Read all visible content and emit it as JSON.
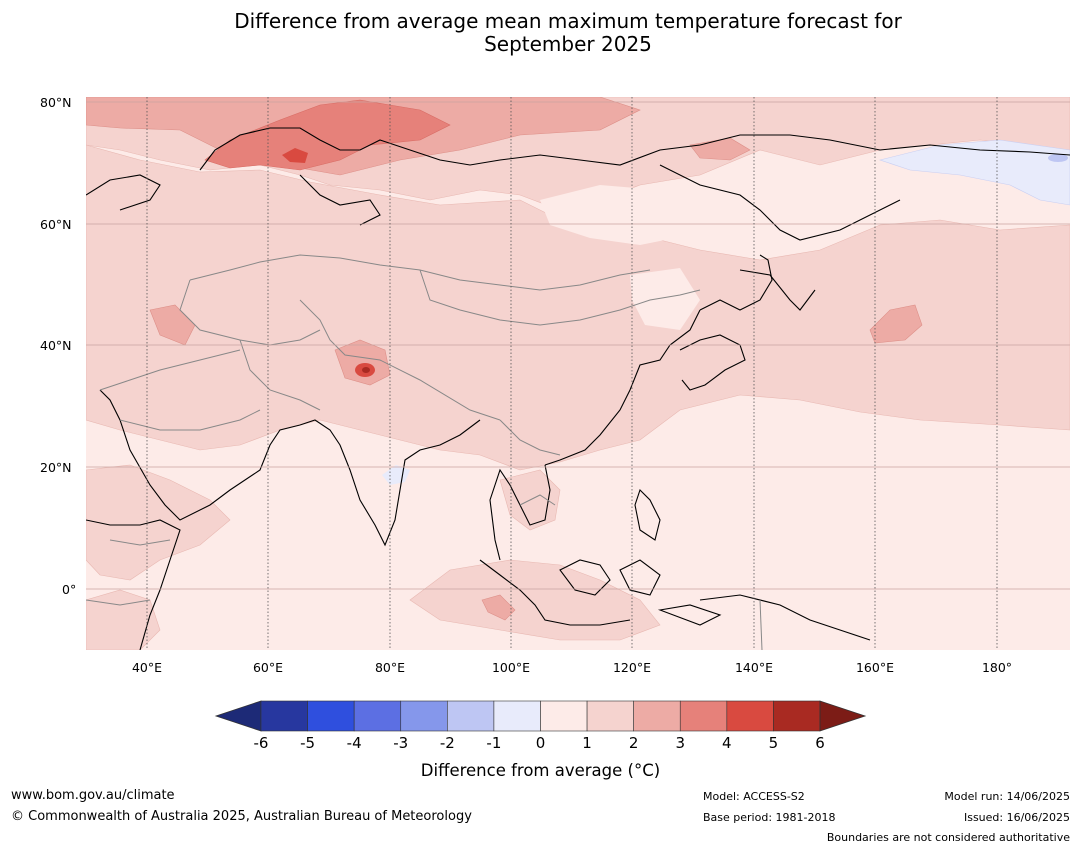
{
  "title": {
    "line1": "Difference from average mean maximum temperature forecast for",
    "line2": "September 2025"
  },
  "map": {
    "lat_labels": [
      "80°N",
      "60°N",
      "40°N",
      "20°N",
      "0°"
    ],
    "lon_labels": [
      "40°E",
      "60°E",
      "80°E",
      "100°E",
      "120°E",
      "140°E",
      "160°E",
      "180°"
    ],
    "extent": {
      "lon_min": 30,
      "lon_max": 192,
      "lat_min": -10,
      "lat_max": 81
    }
  },
  "colorbar": {
    "ticks": [
      "-6",
      "-5",
      "-4",
      "-3",
      "-2",
      "-1",
      "0",
      "1",
      "2",
      "3",
      "4",
      "5",
      "6"
    ],
    "label": "Difference from average (°C)",
    "colors": [
      "#27379f",
      "#2f4fde",
      "#5c6fe3",
      "#8597eb",
      "#bec6f3",
      "#e8ebfb",
      "#fdebe8",
      "#f5d3cf",
      "#edaba5",
      "#e6817a",
      "#d94a40",
      "#a92a22"
    ],
    "under_color": "#1d2a77",
    "over_color": "#7c1c16"
  },
  "footer": {
    "website": "www.bom.gov.au/climate",
    "copyright": "© Commonwealth of Australia 2025, Australian Bureau of Meteorology",
    "model": "Model: ACCESS-S2",
    "base_period": "Base period: 1981-2018",
    "model_run": "Model run: 14/06/2025",
    "issued": "Issued: 16/06/2025",
    "disclaimer": "Boundaries are not considered authoritative"
  }
}
